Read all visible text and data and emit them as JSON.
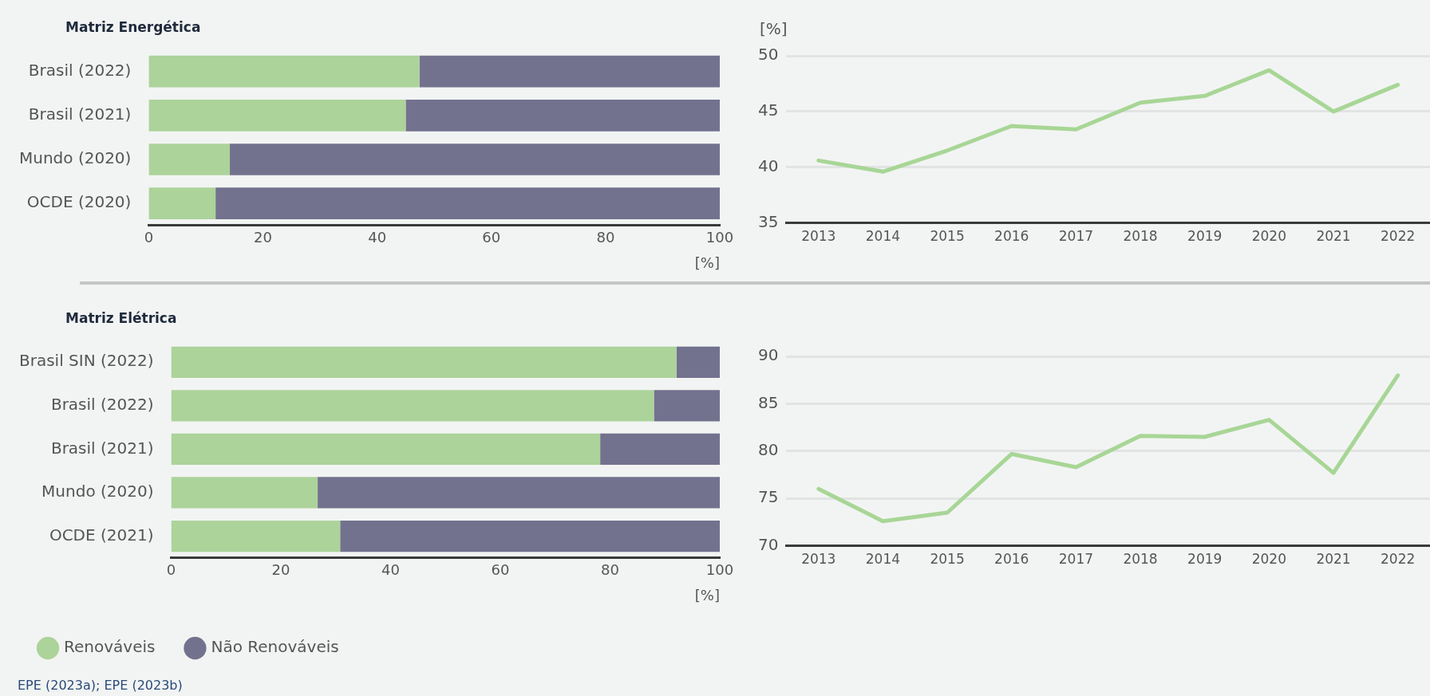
{
  "chart_data": [
    {
      "type": "bar",
      "title": "Matriz Energética",
      "orientation": "horizontal",
      "stacked": true,
      "categories": [
        "Brasil (2022)",
        "Brasil (2021)",
        "Mundo (2020)",
        "OCDE (2020)"
      ],
      "series": [
        {
          "color": "#acd39a",
          "values": [
            47.4,
            45.0,
            14.2,
            11.7
          ]
        },
        {
          "color": "#73728e",
          "values": [
            52.6,
            55.0,
            85.8,
            88.3
          ]
        }
      ],
      "xlim": [
        0,
        100
      ],
      "xticks": [
        0,
        20,
        40,
        60,
        80,
        100
      ],
      "xlabel": "[%]",
      "grid": false,
      "legend": false
    },
    {
      "type": "line",
      "categories": [
        "2013",
        "2014",
        "2015",
        "2016",
        "2017",
        "2018",
        "2019",
        "2020",
        "2021",
        "2022"
      ],
      "series": [
        {
          "color": "#a8d696",
          "values": [
            40.6,
            39.6,
            41.5,
            43.7,
            43.4,
            45.8,
            46.4,
            48.7,
            45.0,
            47.4
          ]
        }
      ],
      "ylim": [
        35,
        50
      ],
      "yticks": [
        35,
        40,
        45,
        50
      ],
      "ylabel": "[%]",
      "grid": "y",
      "marker": "none",
      "legend": false
    },
    {
      "type": "bar",
      "title": "Matriz Elétrica",
      "orientation": "horizontal",
      "stacked": true,
      "categories": [
        "Brasil SIN (2022)",
        "Brasil (2022)",
        "Brasil (2021)",
        "Mundo (2020)",
        "OCDE (2021)"
      ],
      "series": [
        {
          "name": "Renováveis",
          "color": "#acd39a",
          "values": [
            92.1,
            88.0,
            78.2,
            26.7,
            30.8
          ]
        },
        {
          "name": "Não Renováveis",
          "color": "#73728e",
          "values": [
            7.9,
            12.0,
            21.8,
            73.3,
            69.2
          ]
        }
      ],
      "xlim": [
        0,
        100
      ],
      "xticks": [
        0,
        20,
        40,
        60,
        80,
        100
      ],
      "xlabel": "[%]",
      "grid": false,
      "legend": "bottom",
      "annotations": [
        "EPE (2023a); EPE (2023b)"
      ]
    },
    {
      "type": "line",
      "categories": [
        "2013",
        "2014",
        "2015",
        "2016",
        "2017",
        "2018",
        "2019",
        "2020",
        "2021",
        "2022"
      ],
      "series": [
        {
          "color": "#a8d696",
          "values": [
            76.0,
            72.6,
            73.5,
            79.7,
            78.3,
            81.6,
            81.5,
            83.3,
            77.7,
            88.0
          ]
        }
      ],
      "ylim": [
        70,
        90
      ],
      "yticks": [
        70,
        75,
        80,
        85,
        90
      ],
      "grid": "y",
      "marker": "none",
      "legend": false
    }
  ]
}
